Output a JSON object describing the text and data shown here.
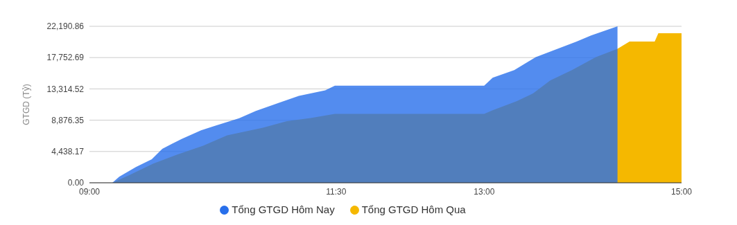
{
  "chart_data": {
    "type": "area",
    "ylabel": "GTGD (Tỷ)",
    "legend": "bottom",
    "grid": "y",
    "xlim": [
      9,
      15
    ],
    "xticks": [
      {
        "value": 9,
        "label": "09:00"
      },
      {
        "value": 11.5,
        "label": "11:30"
      },
      {
        "value": 13,
        "label": "13:00"
      },
      {
        "value": 15,
        "label": "15:00"
      }
    ],
    "ylim": [
      0,
      22190.86
    ],
    "yticks": [
      {
        "value": 0,
        "label": "0.00"
      },
      {
        "value": 4438.17,
        "label": "4,438.17"
      },
      {
        "value": 8876.35,
        "label": "8,876.35"
      },
      {
        "value": 13314.52,
        "label": "13,314.52"
      },
      {
        "value": 17752.69,
        "label": "17,752.69"
      },
      {
        "value": 22190.86,
        "label": "22,190.86"
      }
    ],
    "series": [
      {
        "name": "Tổng GTGD Hôm Qua",
        "color": "#f5b800",
        "x": [
          9,
          9.232,
          9.4,
          9.644,
          9.885,
          10.152,
          10.395,
          10.757,
          11.001,
          11.241,
          11.486,
          13,
          13.086,
          13.328,
          13.497,
          13.669,
          13.889,
          14.132,
          14.351,
          14.473,
          14.728,
          14.765,
          15
        ],
        "values": [
          0,
          0,
          1060,
          2700,
          3970,
          5260,
          6720,
          7810,
          8730,
          9170,
          9760,
          9760,
          10290,
          11570,
          12680,
          14510,
          15980,
          17830,
          19000,
          20030,
          20030,
          21210,
          21210
        ]
      },
      {
        "name": "Tổng GTGD Hôm Nay",
        "color": "#286feb",
        "x": [
          9,
          9.232,
          9.302,
          9.471,
          9.632,
          9.738,
          9.836,
          9.934,
          10.131,
          10.272,
          10.518,
          10.686,
          10.925,
          11.122,
          11.389,
          11.487,
          13,
          13.086,
          13.305,
          13.523,
          13.693,
          13.937,
          14.083,
          14.351
        ],
        "values": [
          0,
          0,
          850,
          2230,
          3330,
          4810,
          5520,
          6220,
          7430,
          8070,
          9150,
          10190,
          11360,
          12320,
          13110,
          13770,
          13770,
          14890,
          15980,
          17830,
          18740,
          20030,
          20880,
          22190
        ]
      }
    ]
  }
}
